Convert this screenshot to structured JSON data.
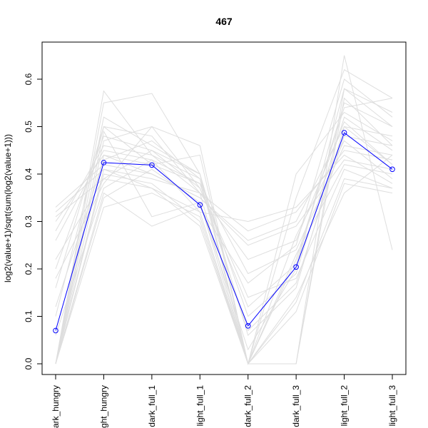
{
  "chart_data": {
    "type": "line",
    "title": "467",
    "xlabel": "",
    "ylabel": "log2(value+1)/sqrt(sum(log2(value+1)))",
    "categories": [
      "dark_hungry",
      "light_hungry",
      "dark_full_1",
      "light_full_1",
      "dark_full_2",
      "dark_full_3",
      "light_full_2",
      "light_full_3"
    ],
    "category_labels_visible": [
      "ark_hungry",
      "ght_hungry",
      "dark_full_1",
      "light_full_1",
      "dark_full_2",
      "dark_full_3",
      "light_full_2",
      "light_full_3"
    ],
    "ylim": [
      -0.01,
      0.66
    ],
    "yticks": [
      0.0,
      0.1,
      0.2,
      0.3,
      0.4,
      0.5,
      0.6
    ],
    "ytick_labels": [
      "0.0",
      "0.1",
      "0.2",
      "0.3",
      "0.4",
      "0.5",
      "0.6"
    ],
    "highlight_color": "#0000ff",
    "background_color": "#dedede",
    "series": [
      {
        "values": [
          0.07,
          0.424,
          0.419,
          0.335,
          0.08,
          0.204,
          0.487,
          0.41
        ],
        "highlight": true
      },
      {
        "values": [
          0.0,
          0.575,
          0.44,
          0.39,
          0.0,
          0.0,
          0.65,
          0.24
        ]
      },
      {
        "values": [
          0.0,
          0.55,
          0.57,
          0.4,
          0.0,
          0.35,
          0.62,
          0.56
        ]
      },
      {
        "values": [
          0.33,
          0.42,
          0.4,
          0.35,
          0.26,
          0.3,
          0.5,
          0.42
        ]
      },
      {
        "values": [
          0.31,
          0.39,
          0.37,
          0.32,
          0.3,
          0.33,
          0.44,
          0.38
        ]
      },
      {
        "values": [
          0.16,
          0.5,
          0.48,
          0.36,
          0.0,
          0.0,
          0.58,
          0.5
        ]
      },
      {
        "values": [
          0.0,
          0.47,
          0.5,
          0.46,
          0.0,
          0.4,
          0.53,
          0.47
        ]
      },
      {
        "values": [
          0.26,
          0.45,
          0.43,
          0.38,
          0.19,
          0.24,
          0.46,
          0.44
        ]
      },
      {
        "values": [
          0.22,
          0.39,
          0.45,
          0.4,
          0.0,
          0.0,
          0.56,
          0.46
        ]
      },
      {
        "values": [
          0.0,
          0.36,
          0.29,
          0.33,
          0.17,
          0.25,
          0.6,
          0.52
        ]
      },
      {
        "values": [
          0.0,
          0.44,
          0.42,
          0.44,
          0.0,
          0.22,
          0.54,
          0.56
        ]
      },
      {
        "values": [
          0.18,
          0.38,
          0.5,
          0.37,
          0.14,
          0.18,
          0.41,
          0.37
        ]
      },
      {
        "values": [
          0.32,
          0.41,
          0.39,
          0.36,
          0.28,
          0.32,
          0.45,
          0.43
        ]
      },
      {
        "values": [
          0.0,
          0.52,
          0.46,
          0.4,
          0.06,
          0.16,
          0.5,
          0.48
        ]
      },
      {
        "values": [
          0.12,
          0.43,
          0.47,
          0.39,
          0.1,
          0.19,
          0.52,
          0.45
        ]
      },
      {
        "values": [
          0.0,
          0.4,
          0.38,
          0.3,
          0.0,
          0.27,
          0.47,
          0.39
        ]
      },
      {
        "values": [
          0.28,
          0.46,
          0.44,
          0.36,
          0.22,
          0.26,
          0.51,
          0.42
        ]
      },
      {
        "values": [
          0.0,
          0.35,
          0.41,
          0.34,
          0.0,
          0.13,
          0.39,
          0.37
        ]
      },
      {
        "values": [
          0.2,
          0.48,
          0.45,
          0.37,
          0.12,
          0.21,
          0.55,
          0.5
        ]
      },
      {
        "values": [
          0.0,
          0.33,
          0.36,
          0.31,
          0.0,
          0.11,
          0.38,
          0.36
        ]
      },
      {
        "values": [
          0.1,
          0.5,
          0.42,
          0.38,
          0.07,
          0.17,
          0.48,
          0.46
        ]
      },
      {
        "values": [
          0.3,
          0.44,
          0.4,
          0.35,
          0.25,
          0.29,
          0.43,
          0.41
        ]
      },
      {
        "values": [
          0.0,
          0.49,
          0.31,
          0.34,
          0.03,
          0.2,
          0.58,
          0.53
        ]
      },
      {
        "values": [
          0.06,
          0.37,
          0.43,
          0.32,
          0.0,
          0.23,
          0.42,
          0.4
        ]
      },
      {
        "values": [
          0.0,
          0.41,
          0.37,
          0.29,
          0.0,
          0.14,
          0.36,
          0.44
        ]
      }
    ]
  }
}
